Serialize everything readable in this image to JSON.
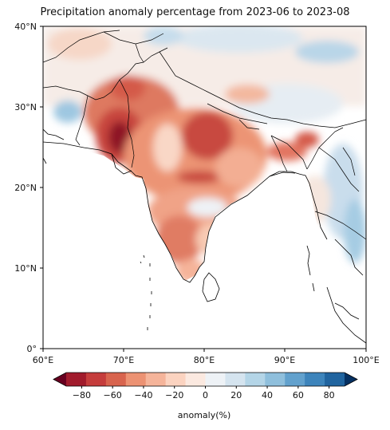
{
  "title": "Precipitation anomaly percentage from 2023-06 to 2023-08",
  "map": {
    "lon_range": [
      60,
      100
    ],
    "lat_range": [
      0,
      40
    ],
    "lon_ticks": [
      "60°E",
      "70°E",
      "80°E",
      "90°E",
      "100°E"
    ],
    "lat_ticks": [
      "0°",
      "10°N",
      "20°N",
      "30°N",
      "40°N"
    ],
    "colorbar": {
      "label": "anomaly(%)",
      "ticks": [
        "−80",
        "−60",
        "−40",
        "−20",
        "0",
        "20",
        "40",
        "60",
        "80"
      ],
      "colors": [
        "#67001f",
        "#a11b2c",
        "#c53d3c",
        "#d8644e",
        "#ec9273",
        "#f5b49a",
        "#fbd3c0",
        "#fbe9e0",
        "#eef2f6",
        "#d5e4ef",
        "#b4d5e7",
        "#8fbfdc",
        "#62a1cd",
        "#3d84bb",
        "#20649f",
        "#053061"
      ]
    }
  }
}
